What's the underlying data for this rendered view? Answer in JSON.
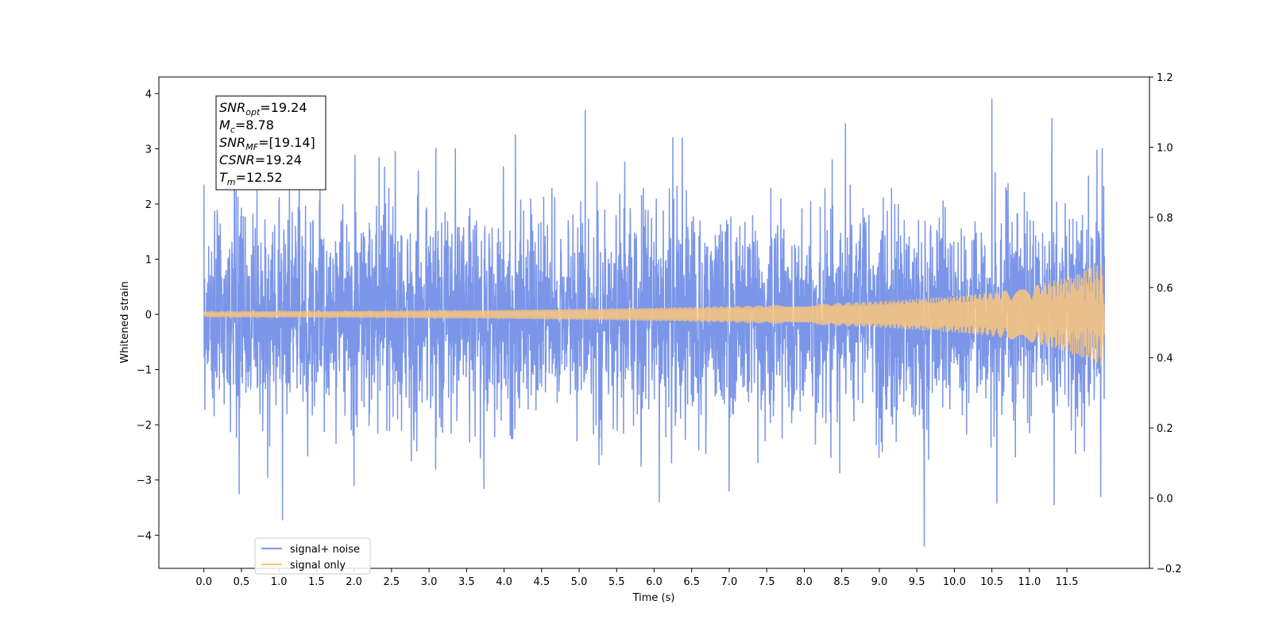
{
  "chart_data": {
    "type": "line",
    "title": "",
    "xlabel": "Time (s)",
    "ylabel": "Whitened strain",
    "xlim": [
      -0.6,
      12.6
    ],
    "ylim": [
      -4.6,
      4.3
    ],
    "y2lim": [
      -0.2,
      1.2
    ],
    "xticks": [
      0.0,
      0.5,
      1.0,
      1.5,
      2.0,
      2.5,
      3.0,
      3.5,
      4.0,
      4.5,
      5.0,
      5.5,
      6.0,
      6.5,
      7.0,
      7.5,
      8.0,
      8.5,
      9.0,
      9.5,
      10.0,
      10.5,
      11.0,
      11.5
    ],
    "xtick_labels": [
      "0.0",
      "0.5",
      "1.0",
      "1.5",
      "2.0",
      "2.5",
      "3.0",
      "3.5",
      "4.0",
      "4.5",
      "5.0",
      "5.5",
      "6.0",
      "6.5",
      "7.0",
      "7.5",
      "8.0",
      "8.5",
      "9.0",
      "9.5",
      "10.0",
      "10.5",
      "11.0",
      "11.5"
    ],
    "yticks": [
      -4,
      -3,
      -2,
      -1,
      0,
      1,
      2,
      3,
      4
    ],
    "ytick_labels": [
      "−4",
      "−3",
      "−2",
      "−1",
      "0",
      "1",
      "2",
      "3",
      "4"
    ],
    "y2ticks": [
      -0.2,
      0.0,
      0.2,
      0.4,
      0.6,
      0.8,
      1.0,
      1.2
    ],
    "y2tick_labels": [
      "−0.2",
      "0.0",
      "0.2",
      "0.4",
      "0.6",
      "0.8",
      "1.0",
      "1.2"
    ],
    "grid": false,
    "legend_position": "bottom-left",
    "series": [
      {
        "name": "signal+ noise",
        "color": "#7b96e8",
        "x_range": [
          0.0,
          12.0
        ],
        "noise_sigma": 1.0,
        "peaks": [
          {
            "x": 0.0,
            "y": 2.35
          },
          {
            "x": 0.47,
            "y": -3.25
          },
          {
            "x": 0.85,
            "y": -2.95
          },
          {
            "x": 2.0,
            "y": -3.1
          },
          {
            "x": 2.55,
            "y": 2.95
          },
          {
            "x": 3.35,
            "y": 3.0
          },
          {
            "x": 3.73,
            "y": -3.15
          },
          {
            "x": 4.15,
            "y": 3.25
          },
          {
            "x": 5.08,
            "y": 3.7
          },
          {
            "x": 6.07,
            "y": -3.4
          },
          {
            "x": 6.25,
            "y": 3.2
          },
          {
            "x": 7.0,
            "y": -3.2
          },
          {
            "x": 8.55,
            "y": 3.45
          },
          {
            "x": 9.6,
            "y": -4.2
          },
          {
            "x": 10.5,
            "y": 3.9
          },
          {
            "x": 11.3,
            "y": 3.55
          },
          {
            "x": 11.33,
            "y": -3.45
          },
          {
            "x": 11.97,
            "y": 3.0
          },
          {
            "x": 11.95,
            "y": -3.3
          }
        ]
      },
      {
        "name": "signal only",
        "color": "#fdc77a",
        "x_range": [
          0.0,
          12.0
        ],
        "envelope": [
          {
            "x": 0.0,
            "y": 0.05
          },
          {
            "x": 2.0,
            "y": 0.06
          },
          {
            "x": 4.0,
            "y": 0.08
          },
          {
            "x": 6.0,
            "y": 0.12
          },
          {
            "x": 8.0,
            "y": 0.18
          },
          {
            "x": 9.0,
            "y": 0.24
          },
          {
            "x": 10.0,
            "y": 0.33
          },
          {
            "x": 10.5,
            "y": 0.4
          },
          {
            "x": 11.0,
            "y": 0.5
          },
          {
            "x": 11.5,
            "y": 0.68
          },
          {
            "x": 12.0,
            "y": 0.95
          }
        ]
      }
    ],
    "annotation": [
      {
        "base": "SNR",
        "sub": "opt",
        "rest": "=19.24"
      },
      {
        "base": "M",
        "sub": "c",
        "rest": "=8.78"
      },
      {
        "base": "SNR",
        "sub": "MF",
        "rest": "=[19.14]"
      },
      {
        "base": "CSNR",
        "sub": "",
        "rest": "=19.24"
      },
      {
        "base": "T",
        "sub": "m",
        "rest": "=12.52"
      }
    ]
  }
}
